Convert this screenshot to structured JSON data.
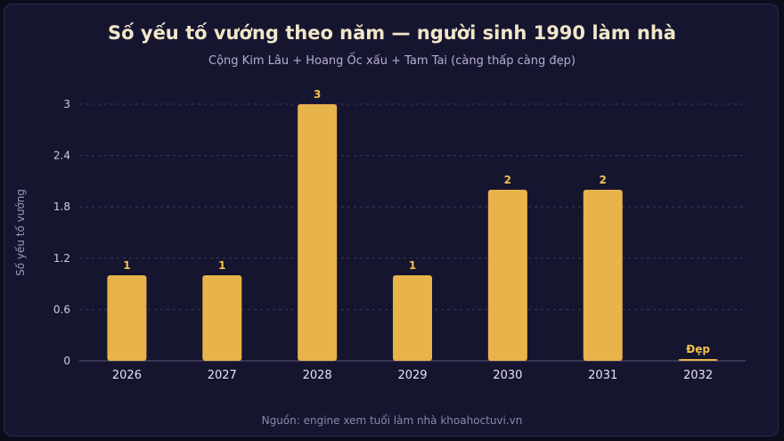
{
  "chart_data": {
    "type": "bar",
    "title": "Số yếu tố vướng theo năm — người sinh 1990 làm nhà",
    "subtitle": "Cộng Kim Lâu + Hoang Ốc xấu + Tam Tai (càng thấp càng đẹp)",
    "xlabel": "",
    "ylabel": "Số yếu tố vướng",
    "categories": [
      "2026",
      "2027",
      "2028",
      "2029",
      "2030",
      "2031",
      "2032"
    ],
    "values": [
      1,
      1,
      3,
      1,
      2,
      2,
      0
    ],
    "data_labels": [
      "1",
      "1",
      "3",
      "1",
      "2",
      "2",
      "Đẹp"
    ],
    "ylim": [
      0,
      3.2
    ],
    "yticks": [
      "0",
      "0.6",
      "1.2",
      "1.8",
      "2.4",
      "3"
    ],
    "grid": true,
    "bar_color": "#e8b34a",
    "label_color": "#f2c14e",
    "source": "Nguồn: engine xem tuổi làm nhà khoahoctuvi.vn"
  }
}
